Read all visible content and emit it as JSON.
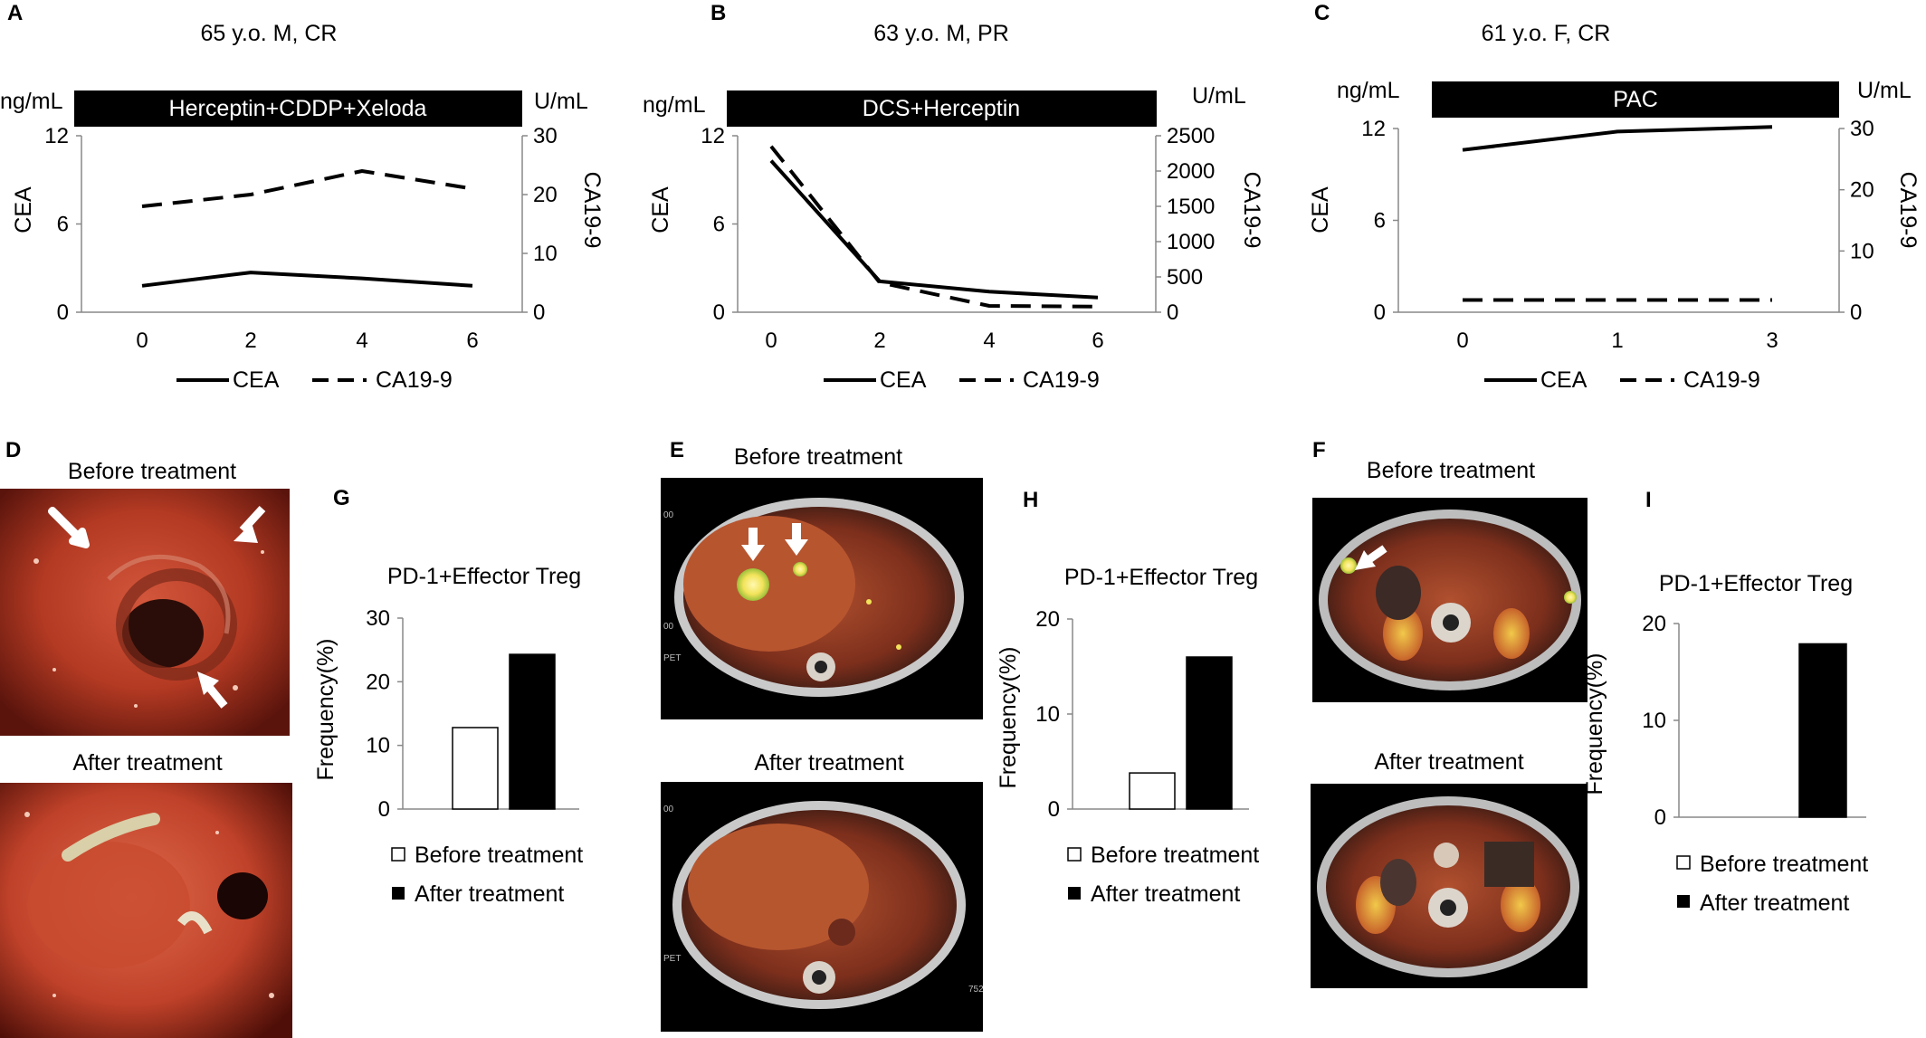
{
  "chart_data": [
    {
      "panel": "A",
      "type": "line",
      "title": "65 y.o. M, CR",
      "treatment": "Herceptin+CDDP+Xeloda",
      "left_unit": "ng/mL",
      "right_unit": "U/mL",
      "ylabel": "CEA",
      "y2label": "CA19-9",
      "x": [
        0,
        2,
        4,
        6
      ],
      "x_ticks": [
        "0",
        "2",
        "4",
        "6"
      ],
      "ylim": [
        0,
        12
      ],
      "y_ticks": [
        "0",
        "6",
        "12"
      ],
      "y2lim": [
        0,
        30
      ],
      "y2_ticks": [
        "0",
        "10",
        "20",
        "30"
      ],
      "series": [
        {
          "name": "CEA",
          "axis": "left",
          "style": "solid",
          "values": [
            1.8,
            2.7,
            2.3,
            1.8
          ]
        },
        {
          "name": "CA19-9",
          "axis": "right",
          "style": "dashed",
          "values": [
            18,
            20,
            24,
            21
          ]
        }
      ],
      "legend": "bottom"
    },
    {
      "panel": "B",
      "type": "line",
      "title": "63 y.o. M, PR",
      "treatment": "DCS+Herceptin",
      "left_unit": "ng/mL",
      "right_unit": "U/mL",
      "ylabel": "CEA",
      "y2label": "CA19-9",
      "x": [
        0,
        2,
        4,
        6
      ],
      "x_ticks": [
        "0",
        "2",
        "4",
        "6"
      ],
      "ylim": [
        0,
        12
      ],
      "y_ticks": [
        "0",
        "6",
        "12"
      ],
      "y2lim": [
        0,
        2500
      ],
      "y2_ticks": [
        "0",
        "500",
        "1000",
        "1500",
        "2000",
        "2500"
      ],
      "series": [
        {
          "name": "CEA",
          "axis": "left",
          "style": "solid",
          "values": [
            10.3,
            2.1,
            1.4,
            1.0
          ]
        },
        {
          "name": "CA19-9",
          "axis": "right",
          "style": "dashed",
          "values": [
            2350,
            420,
            90,
            80
          ]
        }
      ],
      "legend": "bottom"
    },
    {
      "panel": "C",
      "type": "line",
      "title": "61 y.o. F, CR",
      "treatment": "PAC",
      "left_unit": "ng/mL",
      "right_unit": "U/mL",
      "ylabel": "CEA",
      "y2label": "CA19-9",
      "x": [
        0,
        1,
        3
      ],
      "x_ticks": [
        "0",
        "1",
        "3"
      ],
      "ylim": [
        0,
        12
      ],
      "y_ticks": [
        "0",
        "6",
        "12"
      ],
      "y2lim": [
        0,
        30
      ],
      "y2_ticks": [
        "0",
        "10",
        "20",
        "30"
      ],
      "series": [
        {
          "name": "CEA",
          "axis": "left",
          "style": "solid",
          "values": [
            10.6,
            11.8,
            12.1
          ]
        },
        {
          "name": "CA19-9",
          "axis": "right",
          "style": "dashed",
          "values": [
            2,
            2,
            2
          ]
        }
      ],
      "legend": "bottom"
    },
    {
      "panel": "G",
      "type": "bar",
      "title": "PD-1+Effector Treg",
      "ylabel": "Frequency(%)",
      "ylim": [
        0,
        30
      ],
      "y_ticks": [
        "0",
        "10",
        "20",
        "30"
      ],
      "series": [
        {
          "name": "Before treatment",
          "fill": "white",
          "values": [
            12.8
          ]
        },
        {
          "name": "After treatment",
          "fill": "black",
          "values": [
            24.3
          ]
        }
      ],
      "legend": "bottom"
    },
    {
      "panel": "H",
      "type": "bar",
      "title": "PD-1+Effector Treg",
      "ylabel": "Frequency(%)",
      "ylim": [
        0,
        20
      ],
      "y_ticks": [
        "0",
        "10",
        "20"
      ],
      "series": [
        {
          "name": "Before treatment",
          "fill": "white",
          "values": [
            3.8
          ]
        },
        {
          "name": "After treatment",
          "fill": "black",
          "values": [
            16.0
          ]
        }
      ],
      "legend": "bottom"
    },
    {
      "panel": "I",
      "type": "bar",
      "title": "PD-1+Effector Treg",
      "ylabel": "Frequency(%)",
      "ylim": [
        0,
        20
      ],
      "y_ticks": [
        "0",
        "10",
        "20"
      ],
      "series": [
        {
          "name": "Before treatment",
          "fill": "white",
          "values": [
            0
          ]
        },
        {
          "name": "After treatment",
          "fill": "black",
          "values": [
            17.9
          ]
        }
      ],
      "legend": "bottom"
    }
  ],
  "image_panels": [
    {
      "panel": "D",
      "before_label": "Before treatment",
      "after_label": "After treatment",
      "kind": "endoscopy"
    },
    {
      "panel": "E",
      "before_label": "Before treatment",
      "after_label": "After treatment",
      "kind": "pet-ct",
      "scan_marks": [
        "00",
        "00",
        "PET",
        "00",
        "PET",
        "752"
      ]
    },
    {
      "panel": "F",
      "before_label": "Before treatment",
      "after_label": "After treatment",
      "kind": "pet-ct"
    }
  ],
  "colors": {
    "line": "#000000",
    "bar_after": "#000000",
    "bar_before": "#ffffff",
    "tissue": "#b83a25",
    "pet_hot": "#f2e35a"
  }
}
